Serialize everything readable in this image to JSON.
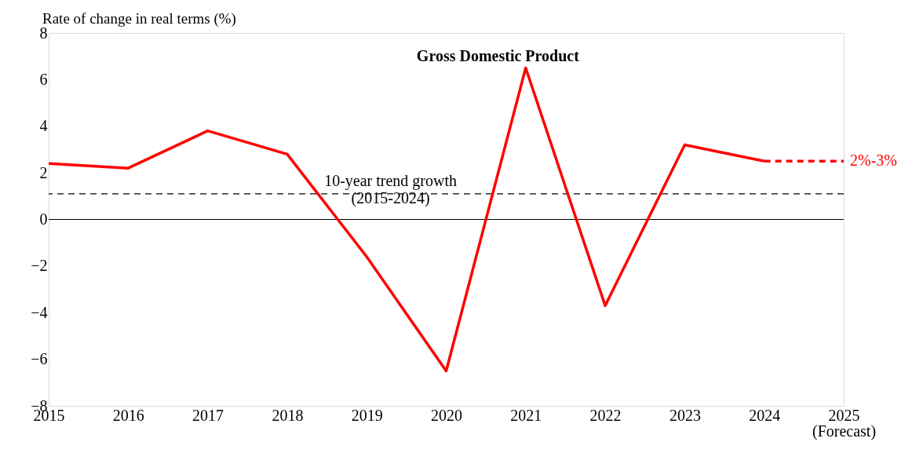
{
  "chart_data": {
    "type": "line",
    "title": "Gross Domestic Product",
    "ylabel": "Rate of change in real terms (%)",
    "xlim": [
      2015,
      2025
    ],
    "xticks": [
      2015,
      2016,
      2017,
      2018,
      2019,
      2020,
      2021,
      2022,
      2023,
      2024,
      {
        "value": 2025,
        "label": "2025\n(Forecast)"
      }
    ],
    "ylim": [
      -8,
      8
    ],
    "yticks": [
      -8,
      -6,
      -4,
      -2,
      0,
      2,
      4,
      6,
      8
    ],
    "series": [
      {
        "color": "#ff0000",
        "x": [
          2015,
          2016,
          2017,
          2018,
          2019,
          2020,
          2021,
          2022,
          2023,
          2024
        ],
        "values": [
          2.4,
          2.2,
          3.8,
          2.8,
          -1.6,
          -6.5,
          6.5,
          -3.7,
          3.2,
          2.5
        ],
        "line_style": "solid"
      },
      {
        "color": "#ff0000",
        "x": [
          2024,
          2025
        ],
        "values": [
          2.5,
          2.5
        ],
        "line_style": "dashed"
      }
    ],
    "ref_lines": [
      {
        "axis": "y",
        "value": 1.1,
        "label": "10-year trend growth\n(2015-2024)",
        "line_style": "dashed",
        "color": "#000000"
      },
      {
        "axis": "y",
        "value": 0,
        "line_style": "solid",
        "color": "#000000"
      }
    ],
    "annotations": [
      {
        "text": "2%-3%",
        "x": 2025,
        "y": 2.5
      }
    ],
    "grid": false,
    "marker": "none"
  }
}
